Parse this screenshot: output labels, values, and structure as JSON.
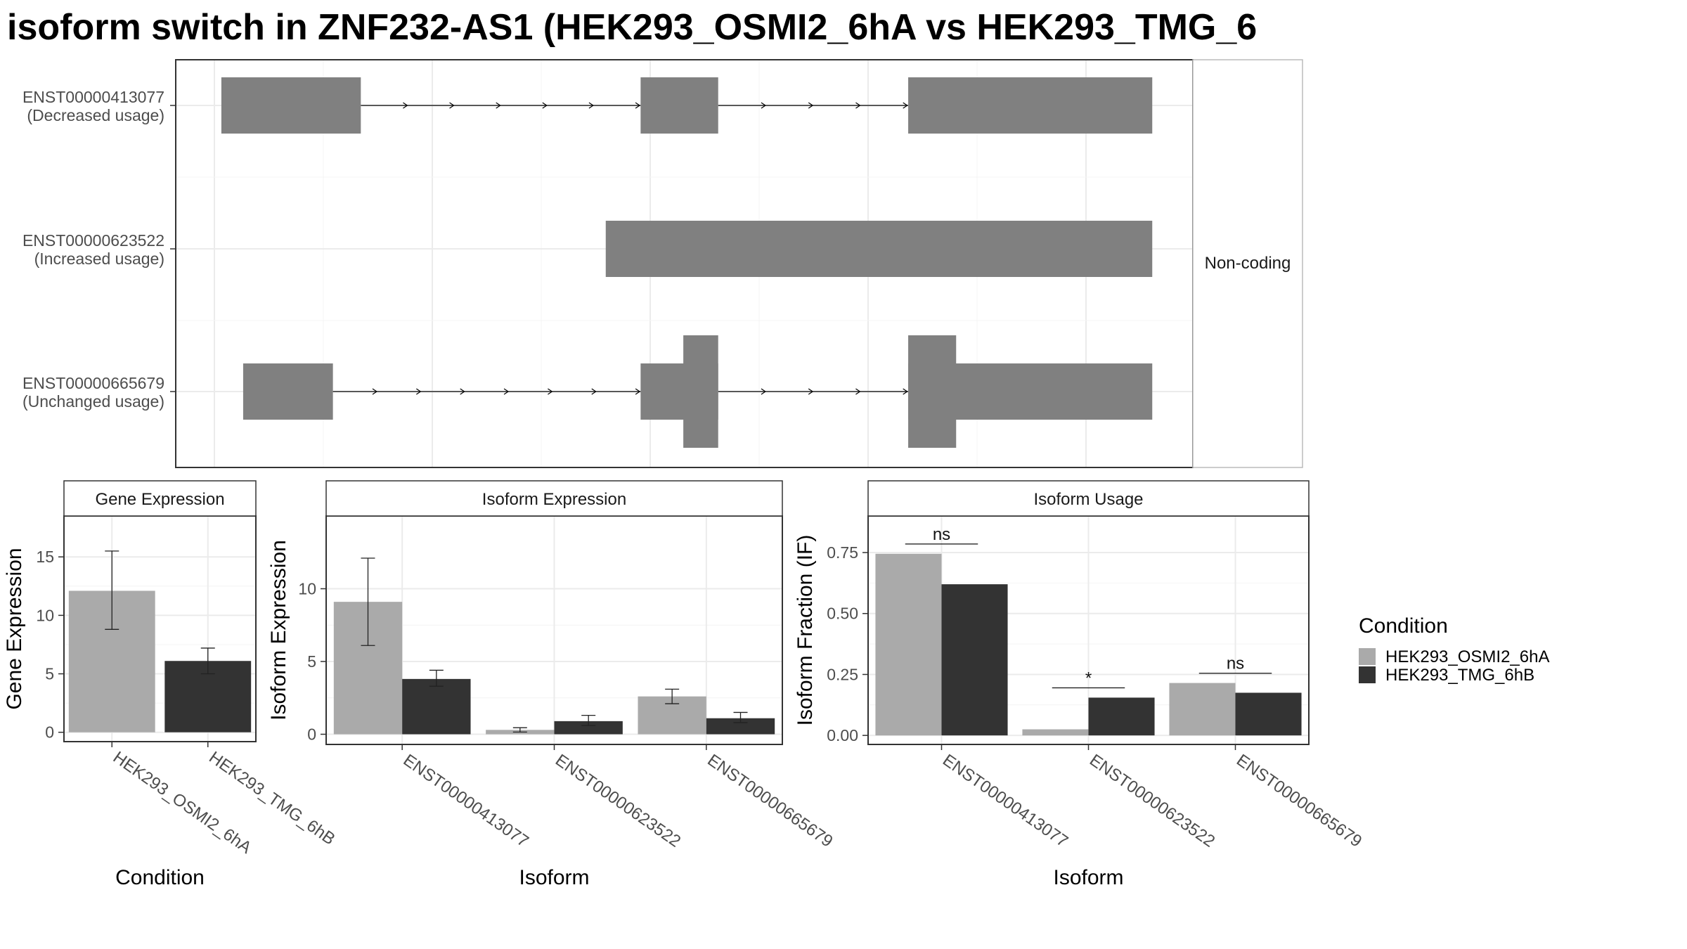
{
  "title": "isoform switch in ZNF232-AS1 (HEK293_OSMI2_6hA vs HEK293_TMG_6",
  "colors": {
    "condition_a": "#aaaaaa",
    "condition_b": "#333333",
    "structure": "#808080"
  },
  "chart_data": [
    {
      "type": "isoform-structure",
      "strip_label": "Non-coding",
      "xlim": [
        0,
        100
      ],
      "isoforms": [
        {
          "id": "ENST00000413077",
          "usage": "(Decreased usage)",
          "exons": [
            [
              0.8,
              16.8
            ],
            [
              48.9,
              57.8
            ],
            [
              79.6,
              107.6
            ]
          ],
          "tall": []
        },
        {
          "id": "ENST00000623522",
          "usage": "(Increased usage)",
          "exons": [
            [
              44.9,
              107.6
            ]
          ],
          "tall": []
        },
        {
          "id": "ENST00000665679",
          "usage": "(Unchanged usage)",
          "exons": [
            [
              3.3,
              13.6
            ],
            [
              48.9,
              57.8
            ],
            [
              79.6,
              107.6
            ]
          ],
          "tall": [
            [
              53.8,
              57.8
            ],
            [
              79.6,
              85.1
            ]
          ]
        }
      ]
    },
    {
      "type": "bar",
      "strip": "Gene Expression",
      "ylabel": "Gene Expression",
      "xlabel": "Condition",
      "ylim": [
        -0.8,
        18.5
      ],
      "yticks": [
        0,
        5,
        10,
        15
      ],
      "categories": [
        "HEK293_OSMI2_6hA",
        "HEK293_TMG_6hB"
      ],
      "values": [
        12.1,
        6.1
      ],
      "errors": [
        [
          8.8,
          15.5
        ],
        [
          5.0,
          7.2
        ]
      ]
    },
    {
      "type": "bar",
      "strip": "Isoform Expression",
      "ylabel": "Isoform Expression",
      "xlabel": "Isoform",
      "ylim": [
        -0.7,
        15.0
      ],
      "yticks": [
        0,
        5,
        10
      ],
      "categories": [
        "ENST00000413077",
        "ENST00000623522",
        "ENST00000665679"
      ],
      "series": [
        {
          "name": "HEK293_OSMI2_6hA",
          "values": [
            9.1,
            0.3,
            2.6
          ],
          "errors": [
            [
              6.1,
              12.1
            ],
            [
              0.15,
              0.45
            ],
            [
              2.1,
              3.1
            ]
          ]
        },
        {
          "name": "HEK293_TMG_6hB",
          "values": [
            3.8,
            0.9,
            1.1
          ],
          "errors": [
            [
              3.3,
              4.4
            ],
            [
              0.6,
              1.3
            ],
            [
              0.8,
              1.5
            ]
          ]
        }
      ]
    },
    {
      "type": "bar",
      "strip": "Isoform Usage",
      "ylabel": "Isoform Fraction (IF)",
      "xlabel": "Isoform",
      "ylim": [
        -0.037,
        0.9
      ],
      "yticks": [
        0.0,
        0.25,
        0.5,
        0.75
      ],
      "ytick_labels": [
        "0.00",
        "0.25",
        "0.50",
        "0.75"
      ],
      "categories": [
        "ENST00000413077",
        "ENST00000623522",
        "ENST00000665679"
      ],
      "series": [
        {
          "name": "HEK293_OSMI2_6hA",
          "values": [
            0.745,
            0.025,
            0.215
          ]
        },
        {
          "name": "HEK293_TMG_6hB",
          "values": [
            0.62,
            0.155,
            0.175
          ]
        }
      ],
      "significance": [
        {
          "label": "ns",
          "y": 0.785
        },
        {
          "label": "*",
          "y": 0.195
        },
        {
          "label": "ns",
          "y": 0.255
        }
      ]
    }
  ],
  "legend": {
    "title": "Condition",
    "items": [
      "HEK293_OSMI2_6hA",
      "HEK293_TMG_6hB"
    ]
  }
}
